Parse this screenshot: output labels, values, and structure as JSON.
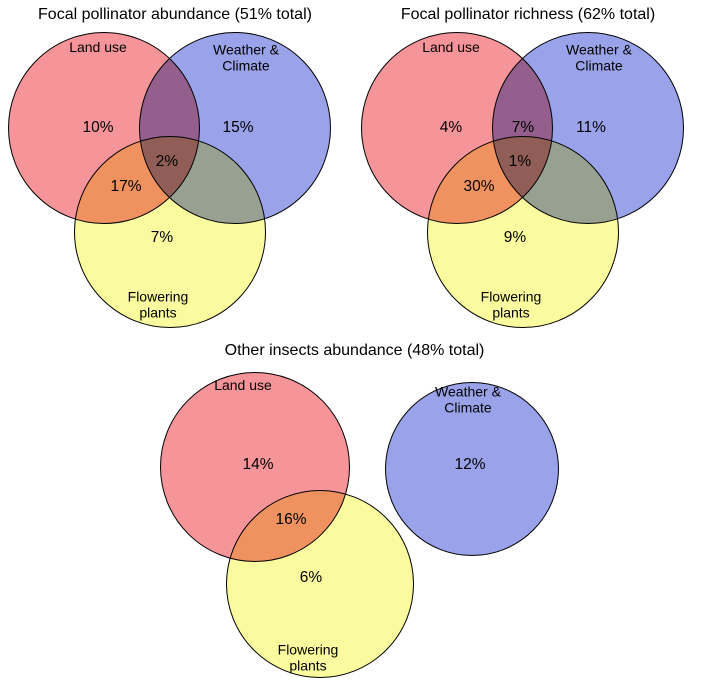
{
  "figure": {
    "background": "#ffffff",
    "text_color": "#000000"
  },
  "chart_data": [
    {
      "type": "venn",
      "title": "Focal pollinator abundance (51% total)",
      "total_percent": 51,
      "sets": [
        {
          "label": "Land use",
          "color": "#f59599"
        },
        {
          "label": "Weather &\nClimate",
          "color": "#9aa3ea"
        },
        {
          "label": "Flowering\nplants",
          "color": "#fafa9e"
        }
      ],
      "regions": {
        "land_only": {
          "value": 10,
          "text": "10%"
        },
        "weather_only": {
          "value": 15,
          "text": "15%"
        },
        "all_three": {
          "value": 2,
          "text": "2%"
        },
        "land_flowering": {
          "value": 17,
          "text": "17%"
        },
        "flowering_only": {
          "value": 7,
          "text": "7%"
        }
      }
    },
    {
      "type": "venn",
      "title": "Focal pollinator richness (62% total)",
      "total_percent": 62,
      "sets": [
        {
          "label": "Land use",
          "color": "#f59599"
        },
        {
          "label": "Weather &\nClimate",
          "color": "#9aa3ea"
        },
        {
          "label": "Flowering\nplants",
          "color": "#fafa9e"
        }
      ],
      "regions": {
        "land_only": {
          "value": 4,
          "text": "4%"
        },
        "land_weather": {
          "value": 7,
          "text": "7%"
        },
        "weather_only": {
          "value": 11,
          "text": "11%"
        },
        "all_three": {
          "value": 1,
          "text": "1%"
        },
        "land_flowering": {
          "value": 30,
          "text": "30%"
        },
        "flowering_only": {
          "value": 9,
          "text": "9%"
        }
      }
    },
    {
      "type": "venn",
      "title": "Other insects abundance (48% total)",
      "total_percent": 48,
      "sets": [
        {
          "label": "Land use",
          "color": "#f59599"
        },
        {
          "label": "Weather &\nClimate",
          "color": "#9aa3ea"
        },
        {
          "label": "Flowering\nplants",
          "color": "#fafa9e"
        }
      ],
      "regions": {
        "land_only": {
          "value": 14,
          "text": "14%"
        },
        "weather_only": {
          "value": 12,
          "text": "12%"
        },
        "land_flowering": {
          "value": 16,
          "text": "16%"
        },
        "flowering_only": {
          "value": 6,
          "text": "6%"
        }
      }
    }
  ]
}
